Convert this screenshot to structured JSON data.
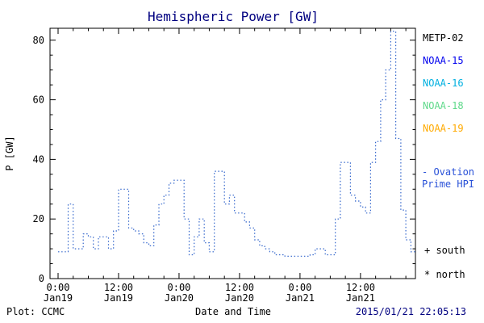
{
  "colors": {
    "title": "#000080",
    "axis": "#000000",
    "timestamp": "#000080",
    "background": "#ffffff"
  },
  "footer": {
    "plot_source": "Plot: CCMC",
    "timestamp": "2015/01/21 22:05:13"
  },
  "legend": {
    "satellites": [
      {
        "label": "METP-02",
        "color": "#000000"
      },
      {
        "label": "NOAA-15",
        "color": "#0000ee"
      },
      {
        "label": "NOAA-16",
        "color": "#00b0e0"
      },
      {
        "label": "NOAA-18",
        "color": "#5fd98a"
      },
      {
        "label": "NOAA-19",
        "color": "#ffaa00"
      }
    ],
    "model": {
      "lines": [
        "- Ovation",
        "Prime HPI"
      ],
      "color": "#2a52d8"
    },
    "markers": [
      {
        "text": "+ south",
        "color": "#000000"
      },
      {
        "text": "* north",
        "color": "#000000"
      }
    ]
  },
  "chart_data": {
    "type": "line",
    "subtype": "step-post",
    "line_style": "dotted",
    "title": "Hemispheric Power [GW]",
    "xlabel": "Date and Time",
    "ylabel": "P [GW]",
    "xlim": [
      -1.6,
      70.9
    ],
    "ylim": [
      0,
      84
    ],
    "x_unit": "hours since Jan19 0:00",
    "x_major_ticks": [
      0,
      12,
      24,
      36,
      48,
      60
    ],
    "x_minor_step": 3,
    "x_tick_labels": [
      [
        "0:00",
        "Jan19"
      ],
      [
        "12:00",
        "Jan19"
      ],
      [
        "0:00",
        "Jan20"
      ],
      [
        "12:00",
        "Jan20"
      ],
      [
        "0:00",
        "Jan21"
      ],
      [
        "12:00",
        "Jan21"
      ]
    ],
    "y_major_ticks": [
      0,
      20,
      40,
      60,
      80
    ],
    "y_minor_step": 5,
    "grid": false,
    "legend_position": "right",
    "series": [
      {
        "name": "Ovation Prime HPI",
        "color": "#3366cc",
        "x_start": 0,
        "x_step": 1,
        "values": [
          9,
          9,
          25,
          10,
          10,
          15,
          14,
          10,
          14,
          14,
          10,
          16,
          30,
          30,
          17,
          16,
          15,
          12,
          11,
          18,
          25,
          28,
          32,
          33,
          33,
          20,
          8,
          14,
          20,
          12,
          9,
          36,
          36,
          25,
          28,
          22,
          22,
          19,
          17,
          13,
          11,
          10,
          9,
          8,
          8,
          7.5,
          7.5,
          7.5,
          7.5,
          7.5,
          8,
          10,
          10,
          8,
          8,
          20,
          39,
          39,
          28,
          26,
          24,
          22,
          39,
          46,
          60,
          70,
          83,
          47,
          23,
          13,
          9,
          8
        ]
      }
    ]
  }
}
